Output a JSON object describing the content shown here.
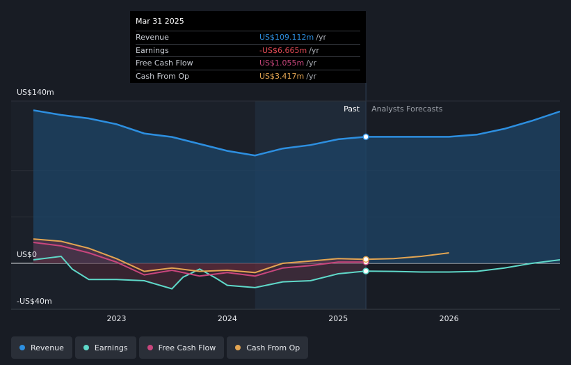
{
  "tooltip": {
    "date": "Mar 31 2025",
    "rows": [
      {
        "label": "Revenue",
        "value": "US$109.112m",
        "unit": "/yr",
        "color": "#2d8fe0"
      },
      {
        "label": "Earnings",
        "value": "-US$6.665m",
        "unit": "/yr",
        "color": "#e04a55"
      },
      {
        "label": "Free Cash Flow",
        "value": "US$1.055m",
        "unit": "/yr",
        "color": "#c9467d"
      },
      {
        "label": "Cash From Op",
        "value": "US$3.417m",
        "unit": "/yr",
        "color": "#e3a552"
      }
    ]
  },
  "legend": [
    {
      "label": "Revenue",
      "color": "#2d8fe0"
    },
    {
      "label": "Earnings",
      "color": "#5fd8c9"
    },
    {
      "label": "Free Cash Flow",
      "color": "#c9467d"
    },
    {
      "label": "Cash From Op",
      "color": "#e3a552"
    }
  ],
  "chart_data": {
    "type": "line",
    "title": "",
    "xlabel": "",
    "ylabel": "",
    "ylim": [
      -40,
      140
    ],
    "y_tick_labels": [
      "US$140m",
      "US$0",
      "-US$40m"
    ],
    "x_tick_labels": [
      {
        "label": "2023",
        "x": 2023.0
      },
      {
        "label": "2024",
        "x": 2024.0
      },
      {
        "label": "2025",
        "x": 2025.0
      },
      {
        "label": "2026",
        "x": 2026.0
      }
    ],
    "past_label": "Past",
    "forecast_label": "Analysts Forecasts",
    "past_end": 2025.25,
    "highlight_start": 2024.25,
    "series": [
      {
        "name": "Revenue",
        "color": "#2d8fe0",
        "points": [
          [
            2022.25,
            132
          ],
          [
            2022.5,
            128
          ],
          [
            2022.75,
            125
          ],
          [
            2023.0,
            120
          ],
          [
            2023.25,
            112
          ],
          [
            2023.5,
            109
          ],
          [
            2023.75,
            103
          ],
          [
            2024.0,
            97
          ],
          [
            2024.25,
            93
          ],
          [
            2024.5,
            99
          ],
          [
            2024.75,
            102
          ],
          [
            2025.0,
            107
          ],
          [
            2025.25,
            109.1
          ],
          [
            2025.5,
            109.1
          ],
          [
            2025.75,
            109.1
          ],
          [
            2026.0,
            109.1
          ],
          [
            2026.25,
            111
          ],
          [
            2026.5,
            116
          ],
          [
            2026.75,
            123
          ],
          [
            2027.0,
            131
          ]
        ]
      },
      {
        "name": "Earnings",
        "color": "#5fd8c9",
        "points": [
          [
            2022.25,
            3
          ],
          [
            2022.5,
            6
          ],
          [
            2022.6,
            -5
          ],
          [
            2022.75,
            -14
          ],
          [
            2023.0,
            -14
          ],
          [
            2023.25,
            -15
          ],
          [
            2023.5,
            -22
          ],
          [
            2023.6,
            -12
          ],
          [
            2023.75,
            -5
          ],
          [
            2023.9,
            -13
          ],
          [
            2024.0,
            -19
          ],
          [
            2024.25,
            -21
          ],
          [
            2024.5,
            -16
          ],
          [
            2024.75,
            -15
          ],
          [
            2025.0,
            -9
          ],
          [
            2025.25,
            -6.7
          ],
          [
            2025.5,
            -7
          ],
          [
            2025.75,
            -7.5
          ],
          [
            2026.0,
            -7.5
          ],
          [
            2026.25,
            -7
          ],
          [
            2026.5,
            -4
          ],
          [
            2026.75,
            0
          ],
          [
            2027.0,
            3
          ]
        ]
      },
      {
        "name": "Free Cash Flow",
        "color": "#c9467d",
        "points": [
          [
            2022.25,
            18
          ],
          [
            2022.5,
            15
          ],
          [
            2022.75,
            9
          ],
          [
            2023.0,
            1
          ],
          [
            2023.25,
            -10
          ],
          [
            2023.5,
            -6
          ],
          [
            2023.75,
            -11
          ],
          [
            2024.0,
            -8
          ],
          [
            2024.25,
            -11
          ],
          [
            2024.5,
            -4
          ],
          [
            2024.75,
            -2
          ],
          [
            2025.0,
            1
          ],
          [
            2025.25,
            1.1
          ]
        ]
      },
      {
        "name": "Cash From Op",
        "color": "#e3a552",
        "points": [
          [
            2022.25,
            21
          ],
          [
            2022.5,
            19
          ],
          [
            2022.75,
            13
          ],
          [
            2023.0,
            4
          ],
          [
            2023.25,
            -7
          ],
          [
            2023.5,
            -4
          ],
          [
            2023.75,
            -7
          ],
          [
            2024.0,
            -6
          ],
          [
            2024.25,
            -8
          ],
          [
            2024.5,
            0
          ],
          [
            2024.75,
            2
          ],
          [
            2025.0,
            4
          ],
          [
            2025.25,
            3.4
          ],
          [
            2025.5,
            4
          ],
          [
            2025.75,
            6
          ],
          [
            2026.0,
            9
          ]
        ]
      }
    ],
    "markers": [
      {
        "series": "Revenue",
        "x": 2025.25,
        "y": 109.1
      },
      {
        "series": "Earnings",
        "x": 2025.25,
        "y": -6.7
      },
      {
        "series": "Free Cash Flow",
        "x": 2025.25,
        "y": 1.1
      },
      {
        "series": "Cash From Op",
        "x": 2025.25,
        "y": 3.4
      }
    ]
  }
}
